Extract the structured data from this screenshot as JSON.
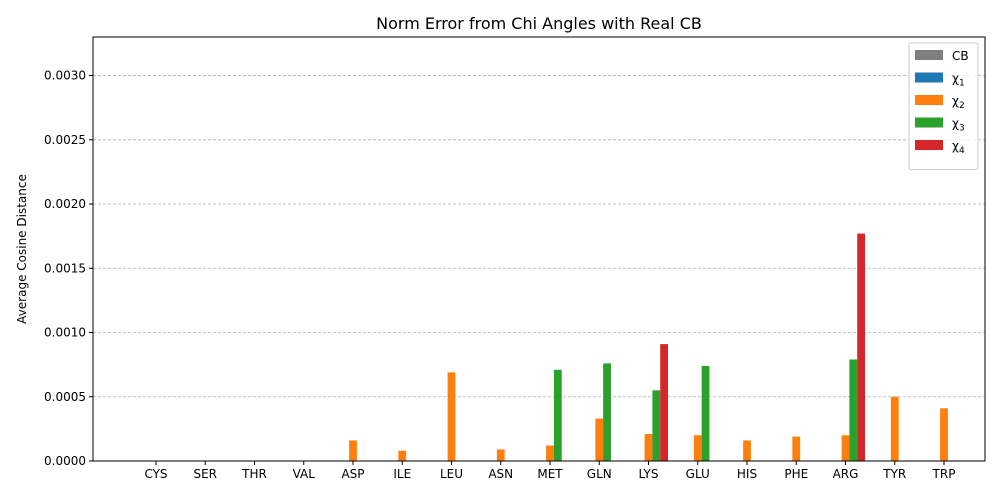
{
  "chart_data": {
    "type": "bar",
    "title": "Norm Error from Chi Angles with Real CB",
    "xlabel": "",
    "ylabel": "Average Cosine Distance",
    "ylim": [
      0,
      0.0033
    ],
    "yticks": [
      "0.0000",
      "0.0005",
      "0.0010",
      "0.0015",
      "0.0020",
      "0.0025",
      "0.0030"
    ],
    "ytick_values": [
      0,
      0.0005,
      0.001,
      0.0015,
      0.002,
      0.0025,
      0.003
    ],
    "grid": "y-dashed",
    "legend_position": "top-right",
    "categories": [
      "CYS",
      "SER",
      "THR",
      "VAL",
      "ASP",
      "ILE",
      "LEU",
      "ASN",
      "MET",
      "GLN",
      "LYS",
      "GLU",
      "HIS",
      "PHE",
      "ARG",
      "TYR",
      "TRP"
    ],
    "series": [
      {
        "name": "CB",
        "label_main": "CB",
        "label_sub": "",
        "color": "#7f7f7f",
        "values": [
          0,
          0,
          0,
          0,
          0,
          0,
          0,
          0,
          0,
          0,
          0,
          0,
          0,
          0,
          0,
          0,
          0
        ]
      },
      {
        "name": "χ1",
        "label_main": "χ",
        "label_sub": "1",
        "color": "#1f77b4",
        "values": [
          0,
          0,
          0,
          0,
          0,
          0,
          0,
          0,
          0,
          0,
          0,
          0,
          0,
          0,
          0,
          0,
          0
        ]
      },
      {
        "name": "χ2",
        "label_main": "χ",
        "label_sub": "2",
        "color": "#ff7f0e",
        "values": [
          0,
          0,
          0,
          0,
          0.00016,
          8e-05,
          0.00069,
          9e-05,
          0.00012,
          0.00033,
          0.00021,
          0.0002,
          0.00016,
          0.00019,
          0.0002,
          0.0005,
          0.00041
        ]
      },
      {
        "name": "χ3",
        "label_main": "χ",
        "label_sub": "3",
        "color": "#2ca02c",
        "values": [
          0,
          0,
          0,
          0,
          0,
          0,
          0,
          0,
          0.00071,
          0.00076,
          0.00055,
          0.00074,
          0,
          0,
          0.00079,
          0,
          0
        ]
      },
      {
        "name": "χ4",
        "label_main": "χ",
        "label_sub": "4",
        "color": "#d62728",
        "values": [
          0,
          0,
          0,
          0,
          0,
          0,
          0,
          0,
          0,
          0,
          0.00091,
          0,
          0,
          0,
          0.00177,
          0,
          0
        ]
      }
    ]
  }
}
